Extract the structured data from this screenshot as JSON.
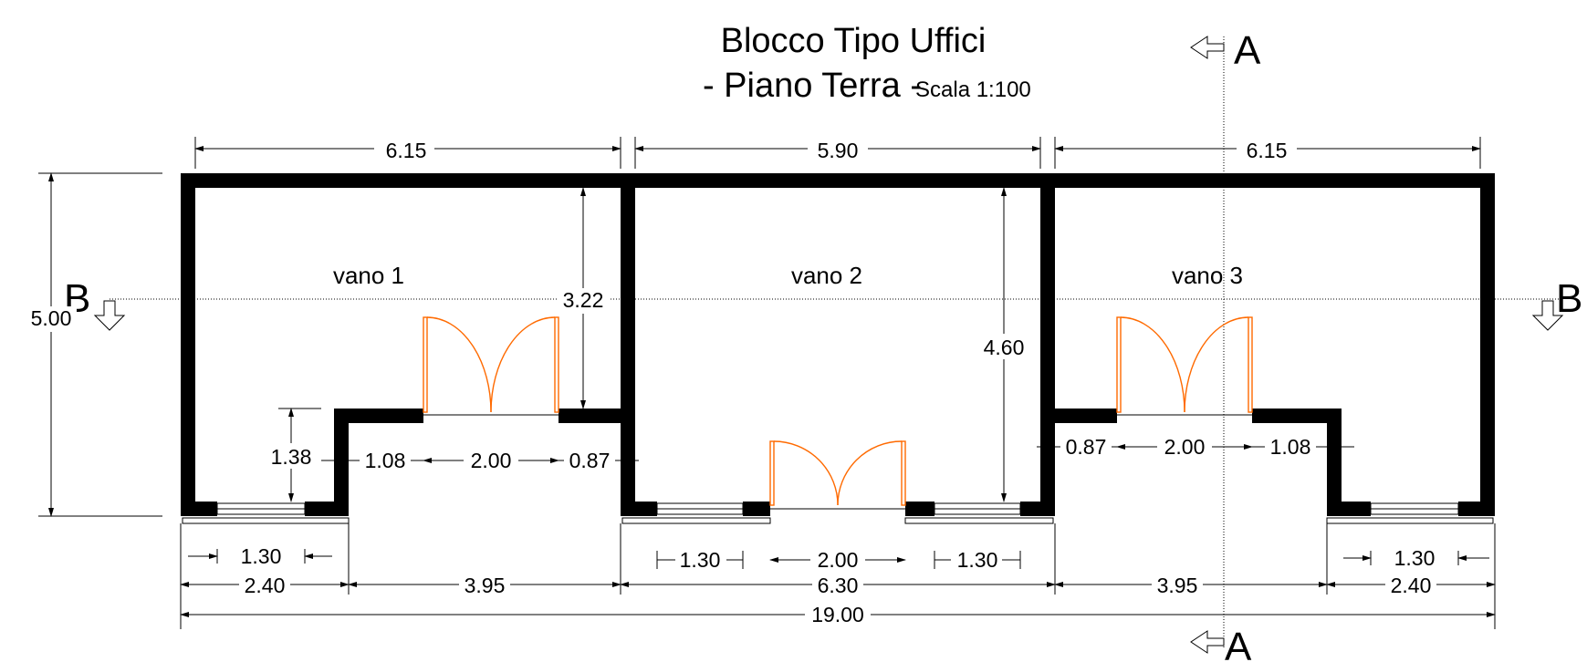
{
  "title": {
    "line1": "Blocco Tipo Uffici",
    "line2": "- Piano Terra -",
    "scale": "Scala 1:100"
  },
  "section_marks": {
    "a_top": "A",
    "a_bottom": "A",
    "b_left": "B",
    "b_right": "B"
  },
  "rooms": [
    "vano 1",
    "vano 2",
    "vano 3"
  ],
  "dimensions": {
    "top": [
      "6.15",
      "5.90",
      "6.15"
    ],
    "overall_height": "5.00",
    "inner_v1_depth": "3.22",
    "inner_v2_depth": "4.60",
    "v1_notch": "1.38",
    "v1_front": [
      "1.08",
      "2.00",
      "0.87"
    ],
    "v3_front": [
      "0.87",
      "2.00",
      "1.08"
    ],
    "windows": [
      "1.30",
      "1.30",
      "1.30",
      "1.30"
    ],
    "v2_door": "2.00",
    "bottom_chain": [
      "2.40",
      "3.95",
      "6.30",
      "3.95",
      "2.40"
    ],
    "total": "19.00"
  },
  "colors": {
    "walls": "#000000",
    "doors": "#ff6a00",
    "background": "#ffffff"
  }
}
